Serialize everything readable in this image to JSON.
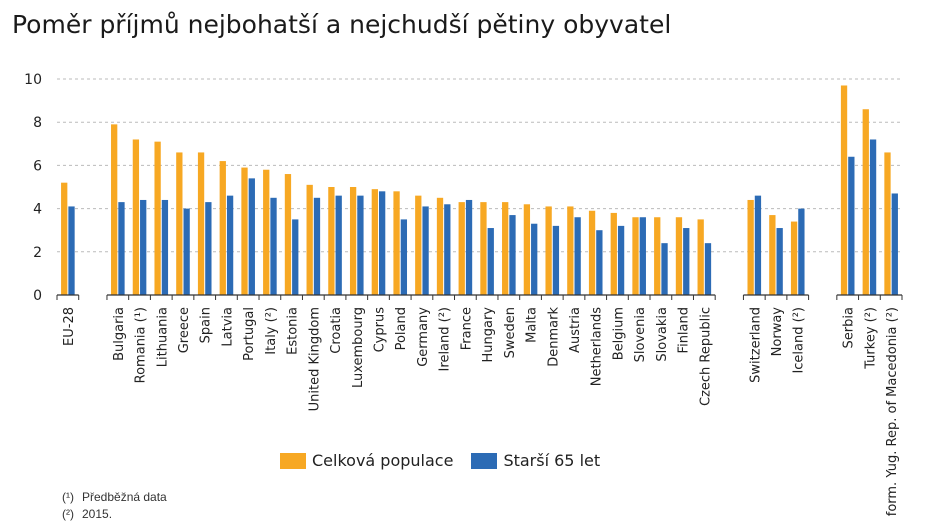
{
  "title": "Poměr příjmů nejbohatší a nejchudší pětiny obyvatel",
  "colors": {
    "total": "#F7A823",
    "elderly": "#2C6BB5",
    "grid": "#bbbbbb",
    "axis": "#333333"
  },
  "legend": {
    "total_label": "Celková populace",
    "elderly_label": "Starší 65 let"
  },
  "notes": [
    {
      "mark": "(¹)",
      "text": "Předběžná data"
    },
    {
      "mark": "(²)",
      "text": "2015."
    }
  ],
  "chart_data": {
    "type": "bar",
    "title": "Poměr příjmů nejbohatší a nejchudší pětiny obyvatel",
    "ylim": [
      0,
      10
    ],
    "yticks": [
      0,
      2,
      4,
      6,
      8,
      10
    ],
    "grid": true,
    "legend_position": "bottom",
    "groups": [
      [
        "EU-28"
      ],
      [
        "Bulgaria",
        "Romania (¹)",
        "Lithuania",
        "Greece",
        "Spain",
        "Latvia",
        "Portugal",
        "Italy (²)",
        "Estonia",
        "United Kingdom",
        "Croatia",
        "Luxembourg",
        "Cyprus",
        "Poland",
        "Germany",
        "Ireland (²)",
        "France",
        "Hungary",
        "Sweden",
        "Malta",
        "Denmark",
        "Austria",
        "Netherlands",
        "Belgium",
        "Slovenia",
        "Slovakia",
        "Finland",
        "Czech Republic"
      ],
      [
        "Switzerland",
        "Norway",
        "Iceland (²)"
      ],
      [
        "Serbia",
        "Turkey (²)",
        "form. Yug. Rep. of Macedonia (²)"
      ]
    ],
    "series": [
      {
        "name": "Celková populace",
        "values": [
          5.2,
          7.9,
          7.2,
          7.1,
          6.6,
          6.6,
          6.2,
          5.9,
          5.8,
          5.6,
          5.1,
          5.0,
          5.0,
          4.9,
          4.8,
          4.6,
          4.5,
          4.3,
          4.3,
          4.3,
          4.2,
          4.1,
          4.1,
          3.9,
          3.8,
          3.6,
          3.6,
          3.6,
          3.5,
          4.4,
          3.7,
          3.4,
          9.7,
          8.6,
          6.6
        ]
      },
      {
        "name": "Starší 65 let",
        "values": [
          4.1,
          4.3,
          4.4,
          4.4,
          4.0,
          4.3,
          4.6,
          5.4,
          4.5,
          3.5,
          4.5,
          4.6,
          4.6,
          4.8,
          3.5,
          4.1,
          4.2,
          4.4,
          3.1,
          3.7,
          3.3,
          3.2,
          3.6,
          3.0,
          3.2,
          3.6,
          2.4,
          3.1,
          2.4,
          4.6,
          3.1,
          4.0,
          6.4,
          7.2,
          4.7
        ]
      }
    ]
  }
}
